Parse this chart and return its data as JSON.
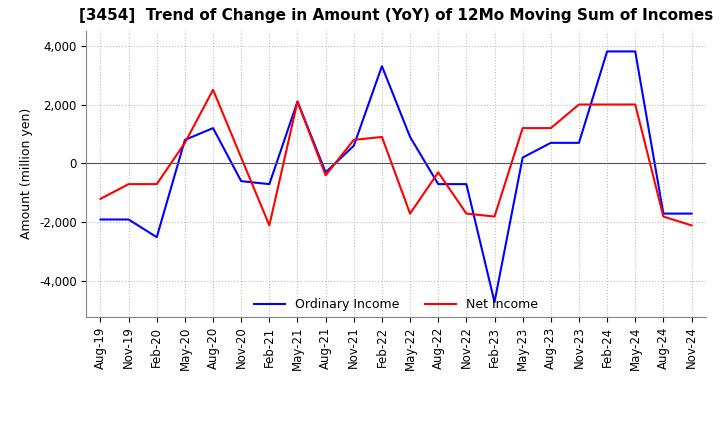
{
  "title": "[3454]  Trend of Change in Amount (YoY) of 12Mo Moving Sum of Incomes",
  "ylabel": "Amount (million yen)",
  "ylim": [
    -5200,
    4500
  ],
  "yticks": [
    -4000,
    -2000,
    0,
    2000,
    4000
  ],
  "x_labels": [
    "Aug-19",
    "Nov-19",
    "Feb-20",
    "May-20",
    "Aug-20",
    "Nov-20",
    "Feb-21",
    "May-21",
    "Aug-21",
    "Nov-21",
    "Feb-22",
    "May-22",
    "Aug-22",
    "Nov-22",
    "Feb-23",
    "May-23",
    "Aug-23",
    "Nov-23",
    "Feb-24",
    "May-24",
    "Aug-24",
    "Nov-24"
  ],
  "ordinary_income": [
    -1900,
    -1900,
    -2500,
    800,
    1200,
    -600,
    -700,
    2100,
    -300,
    600,
    3300,
    900,
    -700,
    -700,
    -4700,
    200,
    700,
    700,
    3800,
    3800,
    -1700,
    -1700
  ],
  "net_income": [
    -1200,
    -700,
    -700,
    700,
    2500,
    200,
    -2100,
    2100,
    -400,
    800,
    900,
    -1700,
    -300,
    -1700,
    -1800,
    1200,
    1200,
    2000,
    2000,
    2000,
    -1800,
    -2100
  ],
  "ordinary_color": "#0000ff",
  "net_color": "#ff0000",
  "grid_color": "#bbbbbb",
  "background_color": "#ffffff",
  "title_fontsize": 11,
  "tick_fontsize": 8.5,
  "ylabel_fontsize": 9,
  "legend_labels": [
    "Ordinary Income",
    "Net Income"
  ],
  "line_width": 1.5
}
